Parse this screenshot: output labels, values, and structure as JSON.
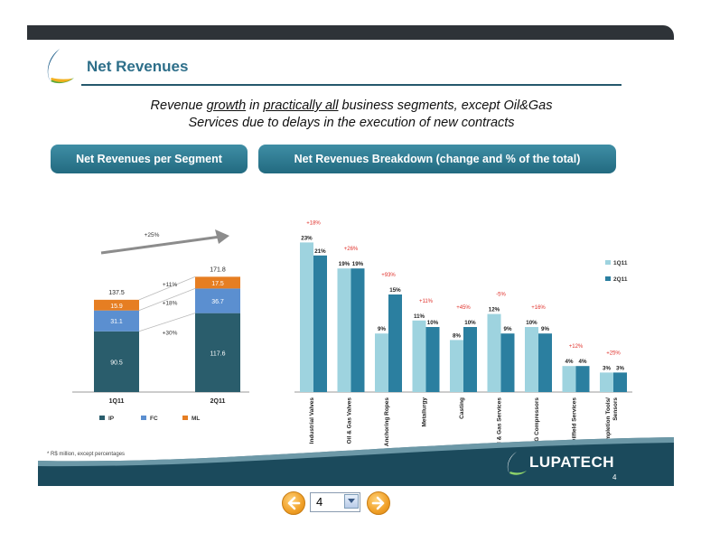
{
  "slide": {
    "title": "Net Revenues",
    "subtitle_line1_parts": [
      "Revenue ",
      "growth",
      " in ",
      "practically all",
      " business segments, except Oil&Gas"
    ],
    "subtitle_line2": "Services due to delays in the execution of new contracts",
    "left_header": "Net Revenues per Segment",
    "right_header": "Net Revenues Breakdown (change and % of the total)",
    "footnote": "* R$ million, except percentages",
    "brand": "LUPATECH",
    "page_number": "4"
  },
  "colors": {
    "ip": "#2a5d6c",
    "fc": "#5b8fd0",
    "ml": "#e67e22",
    "series_1q11": "#9ed3df",
    "series_2q11": "#2b7fa0",
    "change_label": "#e0302a",
    "header_pill": "#2f7f96"
  },
  "chart_data": [
    {
      "type": "bar",
      "stacked": true,
      "categories": [
        "1Q11",
        "2Q11"
      ],
      "totals": [
        "137.5",
        "171.8"
      ],
      "series": [
        {
          "name": "IP",
          "values": [
            90.5,
            117.6
          ],
          "labels": [
            "90.5",
            "117.6"
          ]
        },
        {
          "name": "FC",
          "values": [
            31.1,
            36.7
          ],
          "labels": [
            "31.1",
            "36.7"
          ]
        },
        {
          "name": "ML",
          "values": [
            15.9,
            17.5
          ],
          "labels": [
            "15.9",
            "17.5"
          ]
        }
      ],
      "segment_changes": [
        "+30%",
        "+18%",
        "+11%"
      ],
      "overall_change": "+25%",
      "legend": "bottom"
    },
    {
      "type": "bar",
      "categories": [
        "Industrial Valves",
        "Oil & Gas Valves",
        "Anchoring Ropes",
        "Metallurgy",
        "Casting",
        "Oil & Gas Services",
        "VNG Compressors",
        "Oilfield Services",
        "Completion Tools/ Sensors"
      ],
      "changes": [
        "+18%",
        "+26%",
        "+93%",
        "+11%",
        "+45%",
        "-5%",
        "+16%",
        "+12%",
        "+25%"
      ],
      "series": [
        {
          "name": "1Q11",
          "values": [
            23,
            19,
            9,
            11,
            8,
            12,
            10,
            4,
            3
          ],
          "labels": [
            "23%",
            "19%",
            "9%",
            "11%",
            "8%",
            "12%",
            "10%",
            "4%",
            "3%"
          ]
        },
        {
          "name": "2Q11",
          "values": [
            21,
            19,
            15,
            10,
            10,
            9,
            9,
            4,
            3
          ],
          "labels": [
            "21%",
            "19%",
            "15%",
            "10%",
            "10%",
            "9%",
            "9%",
            "4%",
            "3%"
          ]
        }
      ],
      "legend": "right"
    }
  ],
  "navigation": {
    "current_page": "4",
    "prev_icon": "arrow-left-icon",
    "next_icon": "arrow-right-icon"
  }
}
